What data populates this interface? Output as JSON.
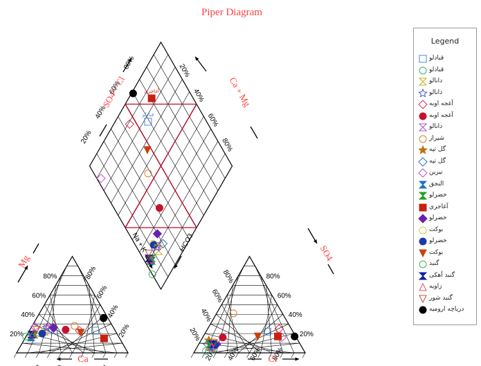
{
  "title": "Piper Diagram",
  "axis_labels": {
    "ca": "Ca",
    "mg": "Mg",
    "na_k": "Na + K",
    "hco3": "HCO3",
    "so4": "SO4",
    "cl": "Cl",
    "so4_cl": "SO4 + Cl",
    "ca_mg": "Ca + Mg"
  },
  "tick_labels": [
    "20%",
    "40%",
    "60%",
    "80%"
  ],
  "legend": {
    "title": "Legend",
    "entries": [
      {
        "label": "قبادلو",
        "marker": "square-open",
        "color": "#4a8ad8"
      },
      {
        "label": "قبادلو",
        "marker": "circle-open",
        "color": "#38b060"
      },
      {
        "label": "دانالو",
        "marker": "hourglass-open",
        "color": "#c8b018"
      },
      {
        "label": "دانالو",
        "marker": "star-open",
        "color": "#4a5ad0"
      },
      {
        "label": "آغجه اوبه",
        "marker": "diamond-open",
        "color": "#e03050"
      },
      {
        "label": "آغجه اوبه",
        "marker": "circle-filled",
        "color": "#c8102e"
      },
      {
        "label": "دانالو",
        "marker": "hourglass-open",
        "color": "#b050c0"
      },
      {
        "label": "شیراز",
        "marker": "circle-open",
        "color": "#d08030"
      },
      {
        "label": "گل تپه",
        "marker": "star-filled",
        "color": "#c07010"
      },
      {
        "label": "گل تپه",
        "marker": "diamond-open",
        "color": "#3070d0"
      },
      {
        "label": "نیرین",
        "marker": "diamond-open",
        "color": "#c050d0"
      },
      {
        "label": "النجق",
        "marker": "hourglass-filled",
        "color": "#1f70c0"
      },
      {
        "label": "خضرلو",
        "marker": "hourglass-filled",
        "color": "#20a020"
      },
      {
        "label": "آغاجري",
        "marker": "square-filled",
        "color": "#c82010"
      },
      {
        "label": "خضرلو",
        "marker": "diamond-filled",
        "color": "#6a1fb0"
      },
      {
        "label": "بوكت",
        "marker": "circle-open",
        "color": "#d8d040"
      },
      {
        "label": "خضرلو",
        "marker": "circle-filled",
        "color": "#1a3aa8"
      },
      {
        "label": "بوكت",
        "marker": "triangle-down-filled",
        "color": "#c84010"
      },
      {
        "label": "گنبد",
        "marker": "circle-open",
        "color": "#40b060"
      },
      {
        "label": "گنبد آهکی",
        "marker": "hourglass-filled",
        "color": "#1020a0"
      },
      {
        "label": "زاویه",
        "marker": "triangle-up-open",
        "color": "#e05060"
      },
      {
        "label": "گنبد شور",
        "marker": "triangle-down-open",
        "color": "#c05030"
      },
      {
        "label": "دریاچه ارومیه",
        "marker": "circle-filled",
        "color": "#000000"
      }
    ]
  },
  "point_labels": {
    "ghobadlu": "قبادلو",
    "aghajari": "آغاجري",
    "danalu": "دانالو"
  },
  "colors": {
    "title": "#ff4040",
    "axis_label": "#ff4040",
    "grid": "#000000",
    "region_lines": "#b01030"
  },
  "chart_data": {
    "type": "scatter",
    "title": "Piper Diagram",
    "variables": [
      "Ca%",
      "Mg%",
      "NaK%",
      "HCO3%",
      "SO4%",
      "Cl%"
    ],
    "samples": [
      {
        "name": "قبادلو",
        "cations": [
          18,
          23,
          59
        ],
        "anions": [
          23,
          22,
          55
        ]
      },
      {
        "name": "قبادلو",
        "cations": [
          78,
          18,
          4
        ],
        "anions": [
          82,
          4,
          14
        ]
      },
      {
        "name": "دانالو",
        "cations": [
          64,
          22,
          14
        ],
        "anions": [
          83,
          7,
          10
        ]
      },
      {
        "name": "دانالو",
        "cations": [
          60,
          26,
          14
        ],
        "anions": [
          80,
          9,
          11
        ]
      },
      {
        "name": "آغجه اوبه",
        "cations": [
          32,
          23,
          45
        ],
        "anions": [
          11,
          25,
          64
        ]
      },
      {
        "name": "آغجه اوبه",
        "cations": [
          44,
          24,
          32
        ],
        "anions": [
          66,
          16,
          18
        ]
      },
      {
        "name": "دانالو",
        "cations": [
          60,
          25,
          15
        ],
        "anions": [
          80,
          10,
          10
        ]
      },
      {
        "name": "شیراز",
        "cations": [
          34,
          28,
          38
        ],
        "anions": [
          44,
          41,
          15
        ]
      },
      {
        "name": "گل تپه",
        "cations": [
          75,
          20,
          5
        ],
        "anions": [
          80,
          13,
          7
        ]
      },
      {
        "name": "گل تپه",
        "cations": [
          56,
          24,
          20
        ],
        "anions": [
          83,
          9,
          8
        ]
      },
      {
        "name": "نیرین",
        "cations": [
          70,
          27,
          3
        ],
        "anions": [
          13,
          16,
          71
        ]
      },
      {
        "name": "النجق",
        "cations": [
          79,
          16,
          5
        ],
        "anions": [
          82,
          6,
          12
        ]
      },
      {
        "name": "خضرلو",
        "cations": [
          75,
          19,
          6
        ],
        "anions": [
          81,
          9,
          10
        ]
      },
      {
        "name": "آغاجري",
        "cations": [
          14,
          15,
          71
        ],
        "anions": [
          16,
          17,
          67
        ]
      },
      {
        "name": "خضرلو",
        "cations": [
          54,
          26,
          20
        ],
        "anions": [
          75,
          9,
          16
        ]
      },
      {
        "name": "بوكت",
        "cations": [
          67,
          20,
          13
        ],
        "anions": [
          76,
          11,
          13
        ]
      },
      {
        "name": "خضرلو",
        "cations": [
          67,
          20,
          13
        ],
        "anions": [
          77,
          8,
          15
        ]
      },
      {
        "name": "بوكت",
        "cations": [
          32,
          21,
          47
        ],
        "anions": [
          34,
          17,
          49
        ]
      },
      {
        "name": "گنبد",
        "cations": [
          83,
          17,
          0
        ],
        "anions": [
          88,
          2,
          10
        ]
      },
      {
        "name": "گنبد آهکی",
        "cations": [
          77,
          19,
          4
        ],
        "anions": [
          79,
          9,
          12
        ]
      },
      {
        "name": "زاویه",
        "cations": [
          75,
          20,
          5
        ],
        "anions": [
          81,
          6,
          13
        ]
      },
      {
        "name": "گنبد شور",
        "cations": [
          70,
          24,
          6
        ],
        "anions": [
          77,
          10,
          13
        ]
      },
      {
        "name": "دریاچه ارومیه",
        "cations": [
          4,
          36,
          60
        ],
        "anions": [
          1,
          17,
          82
        ]
      }
    ]
  }
}
